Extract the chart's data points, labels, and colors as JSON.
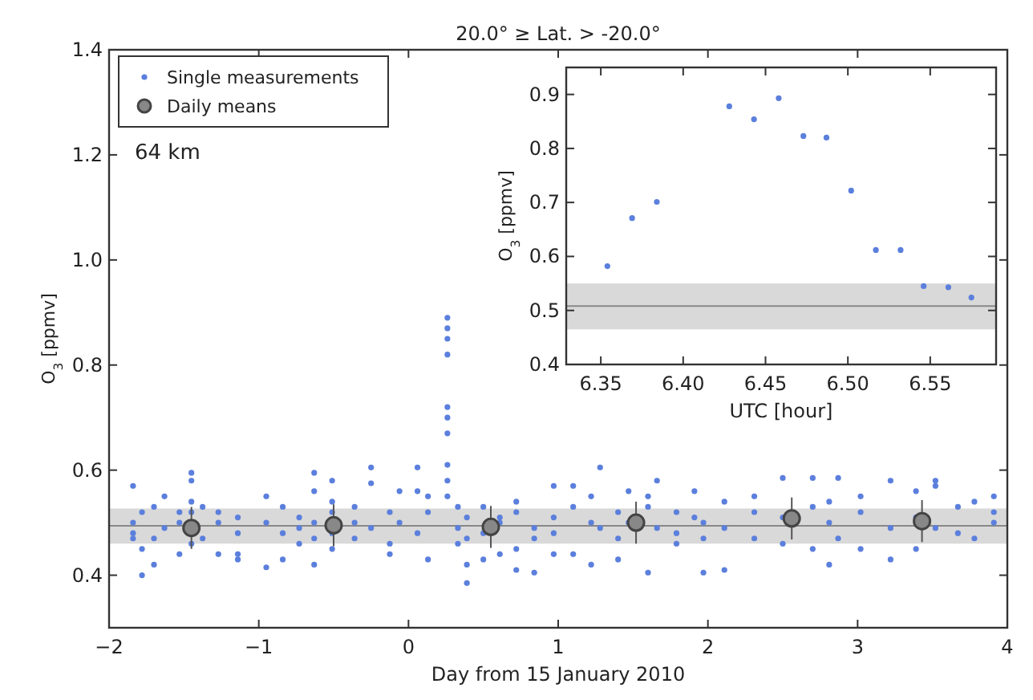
{
  "chart_data": [
    {
      "type": "scatter",
      "title": "20.0° ≥ Lat. > -20.0°",
      "xlabel": "Day from 15 January 2010",
      "ylabel": "O$_{3}$ [ppmv]",
      "xlim": [
        -2,
        4
      ],
      "xticks": [
        {
          "value": -2,
          "label": "−2"
        },
        {
          "value": -1,
          "label": "−1"
        },
        {
          "value": 0,
          "label": "0"
        },
        {
          "value": 1,
          "label": "1"
        },
        {
          "value": 2,
          "label": "2"
        },
        {
          "value": 3,
          "label": "3"
        },
        {
          "value": 4,
          "label": "4"
        }
      ],
      "ylim": [
        0.3,
        1.4
      ],
      "yticks": [
        {
          "value": 0.4,
          "label": "0.4"
        },
        {
          "value": 0.6,
          "label": "0.6"
        },
        {
          "value": 0.8,
          "label": "0.8"
        },
        {
          "value": 1.0,
          "label": "1.0"
        },
        {
          "value": 1.2,
          "label": "1.2"
        },
        {
          "value": 1.4,
          "label": "1.4"
        }
      ],
      "grid": false,
      "legend": "top left",
      "marker": "circle",
      "annotations": [
        "64 km"
      ],
      "ref_lines": [
        {
          "axis": "y",
          "value": 0.494,
          "color": "#888888"
        }
      ],
      "bands": [
        {
          "axis": "y",
          "from": 0.46,
          "to": 0.527,
          "color": "#d9d9d9"
        }
      ],
      "series": [
        {
          "name": "Single measurements",
          "color": "#5b7fdc",
          "x": [
            -1.84,
            -1.84,
            -1.84,
            -1.84,
            -1.78,
            -1.78,
            -1.78,
            -1.7,
            -1.7,
            -1.7,
            -1.63,
            -1.63,
            -1.53,
            -1.53,
            -1.53,
            -1.45,
            -1.45,
            -1.45,
            -1.45,
            -1.45,
            -1.375,
            -1.375,
            -1.27,
            -1.27,
            -1.27,
            -1.14,
            -1.14,
            -1.14,
            -1.14,
            -0.95,
            -0.95,
            -0.95,
            -0.84,
            -0.84,
            -0.84,
            -0.73,
            -0.73,
            -0.73,
            -0.63,
            -0.63,
            -0.63,
            -0.63,
            -0.63,
            -0.51,
            -0.51,
            -0.51,
            -0.51,
            -0.51,
            -0.36,
            -0.36,
            -0.36,
            -0.25,
            -0.25,
            -0.25,
            -0.125,
            -0.125,
            -0.125,
            -0.06,
            -0.06,
            0.06,
            0.06,
            0.06,
            0.13,
            0.13,
            0.13,
            0.26,
            0.26,
            0.26,
            0.26,
            0.26,
            0.26,
            0.26,
            0.26,
            0.26,
            0.26,
            0.33,
            0.33,
            0.33,
            0.39,
            0.39,
            0.39,
            0.39,
            0.5,
            0.5,
            0.5,
            0.61,
            0.61,
            0.61,
            0.72,
            0.72,
            0.72,
            0.72,
            0.84,
            0.84,
            0.84,
            0.97,
            0.97,
            0.97,
            0.97,
            1.1,
            1.1,
            1.1,
            1.22,
            1.22,
            1.22,
            1.28,
            1.28,
            1.4,
            1.4,
            1.4,
            1.47,
            1.47,
            1.6,
            1.6,
            1.6,
            1.66,
            1.66,
            1.79,
            1.79,
            1.79,
            1.91,
            1.91,
            1.97,
            1.97,
            1.97,
            2.11,
            2.11,
            2.11,
            2.31,
            2.31,
            2.31,
            2.5,
            2.5,
            2.5,
            2.7,
            2.7,
            2.7,
            2.81,
            2.81,
            2.81,
            2.87,
            2.87,
            3.02,
            3.02,
            3.02,
            3.22,
            3.22,
            3.22,
            3.39,
            3.39,
            3.39,
            3.52,
            3.52,
            3.52,
            3.67,
            3.67,
            3.78,
            3.78,
            3.91,
            3.91,
            3.91
          ],
          "values": [
            0.57,
            0.5,
            0.48,
            0.47,
            0.4,
            0.45,
            0.52,
            0.42,
            0.47,
            0.53,
            0.55,
            0.49,
            0.44,
            0.5,
            0.52,
            0.595,
            0.58,
            0.54,
            0.46,
            0.52,
            0.47,
            0.53,
            0.44,
            0.5,
            0.52,
            0.43,
            0.44,
            0.48,
            0.51,
            0.415,
            0.55,
            0.5,
            0.43,
            0.53,
            0.48,
            0.46,
            0.51,
            0.49,
            0.42,
            0.595,
            0.56,
            0.5,
            0.47,
            0.58,
            0.54,
            0.52,
            0.48,
            0.45,
            0.47,
            0.5,
            0.53,
            0.605,
            0.575,
            0.49,
            0.44,
            0.46,
            0.52,
            0.56,
            0.5,
            0.605,
            0.56,
            0.48,
            0.43,
            0.52,
            0.55,
            0.89,
            0.87,
            0.85,
            0.82,
            0.72,
            0.7,
            0.67,
            0.61,
            0.58,
            0.55,
            0.53,
            0.49,
            0.46,
            0.385,
            0.42,
            0.47,
            0.51,
            0.43,
            0.48,
            0.53,
            0.44,
            0.5,
            0.51,
            0.41,
            0.45,
            0.52,
            0.54,
            0.405,
            0.47,
            0.49,
            0.57,
            0.48,
            0.44,
            0.51,
            0.57,
            0.53,
            0.44,
            0.42,
            0.5,
            0.55,
            0.605,
            0.49,
            0.43,
            0.47,
            0.52,
            0.56,
            0.5,
            0.405,
            0.55,
            0.53,
            0.58,
            0.49,
            0.52,
            0.48,
            0.46,
            0.56,
            0.51,
            0.405,
            0.5,
            0.47,
            0.54,
            0.41,
            0.49,
            0.55,
            0.47,
            0.52,
            0.585,
            0.46,
            0.51,
            0.585,
            0.45,
            0.53,
            0.42,
            0.5,
            0.54,
            0.585,
            0.47,
            0.45,
            0.52,
            0.55,
            0.43,
            0.58,
            0.49,
            0.45,
            0.56,
            0.51,
            0.57,
            0.58,
            0.49,
            0.48,
            0.53,
            0.54,
            0.47,
            0.55,
            0.5,
            0.52
          ]
        },
        {
          "name": "Daily means",
          "color": "#888888",
          "x": [
            -1.45,
            -0.5,
            0.55,
            1.52,
            2.56,
            3.43
          ],
          "values": [
            0.49,
            0.495,
            0.492,
            0.5,
            0.508,
            0.503
          ],
          "errors": [
            0.04,
            0.04,
            0.04,
            0.04,
            0.04,
            0.04
          ]
        }
      ]
    },
    {
      "type": "scatter",
      "xlabel": "UTC [hour]",
      "ylabel": "O$_{3}$ [ppmv]",
      "xlim": [
        6.329,
        6.59
      ],
      "xticks": [
        {
          "value": 6.35,
          "label": "6.35"
        },
        {
          "value": 6.4,
          "label": "6.40"
        },
        {
          "value": 6.45,
          "label": "6.45"
        },
        {
          "value": 6.5,
          "label": "6.50"
        },
        {
          "value": 6.55,
          "label": "6.55"
        }
      ],
      "ylim": [
        0.4,
        0.95
      ],
      "yticks": [
        {
          "value": 0.4,
          "label": "0.4"
        },
        {
          "value": 0.5,
          "label": "0.5"
        },
        {
          "value": 0.6,
          "label": "0.6"
        },
        {
          "value": 0.7,
          "label": "0.7"
        },
        {
          "value": 0.8,
          "label": "0.8"
        },
        {
          "value": 0.9,
          "label": "0.9"
        }
      ],
      "grid": false,
      "marker": "circle",
      "ref_lines": [
        {
          "axis": "y",
          "value": 0.508,
          "color": "#888888"
        }
      ],
      "bands": [
        {
          "axis": "y",
          "from": 0.465,
          "to": 0.55,
          "color": "#d9d9d9"
        }
      ],
      "series": [
        {
          "color": "#5b7fdc",
          "x": [
            6.354,
            6.369,
            6.384,
            6.428,
            6.443,
            6.458,
            6.473,
            6.487,
            6.502,
            6.517,
            6.532,
            6.546,
            6.561,
            6.575
          ],
          "values": [
            0.582,
            0.671,
            0.701,
            0.878,
            0.854,
            0.893,
            0.823,
            0.82,
            0.722,
            0.612,
            0.612,
            0.545,
            0.543,
            0.524
          ]
        }
      ]
    }
  ]
}
